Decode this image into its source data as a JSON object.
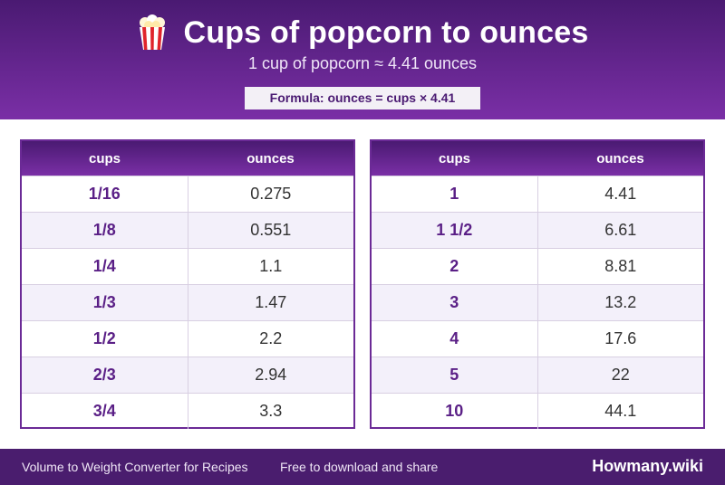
{
  "header": {
    "title": "Cups of popcorn to ounces",
    "subtitle": "1 cup of popcorn ≈ 4.41 ounces",
    "formula": "Formula: ounces = cups × 4.41",
    "icon": "popcorn-icon"
  },
  "table_left": {
    "headers": [
      "cups",
      "ounces"
    ],
    "rows": [
      {
        "cups": "1/16",
        "ounces": "0.275"
      },
      {
        "cups": "1/8",
        "ounces": "0.551"
      },
      {
        "cups": "1/4",
        "ounces": "1.1"
      },
      {
        "cups": "1/3",
        "ounces": "1.47"
      },
      {
        "cups": "1/2",
        "ounces": "2.2"
      },
      {
        "cups": "2/3",
        "ounces": "2.94"
      },
      {
        "cups": "3/4",
        "ounces": "3.3"
      }
    ]
  },
  "table_right": {
    "headers": [
      "cups",
      "ounces"
    ],
    "rows": [
      {
        "cups": "1",
        "ounces": "4.41"
      },
      {
        "cups": "1 1/2",
        "ounces": "6.61"
      },
      {
        "cups": "2",
        "ounces": "8.81"
      },
      {
        "cups": "3",
        "ounces": "13.2"
      },
      {
        "cups": "4",
        "ounces": "17.6"
      },
      {
        "cups": "5",
        "ounces": "22"
      },
      {
        "cups": "10",
        "ounces": "44.1"
      }
    ]
  },
  "footer": {
    "left": "Volume to Weight Converter for Recipes",
    "middle": "Free to download and share",
    "brand": "Howmany.wiki"
  },
  "colors": {
    "brand_purple": "#4a1a72",
    "accent_purple": "#7a2fa6",
    "cups_text": "#5a1f86"
  }
}
